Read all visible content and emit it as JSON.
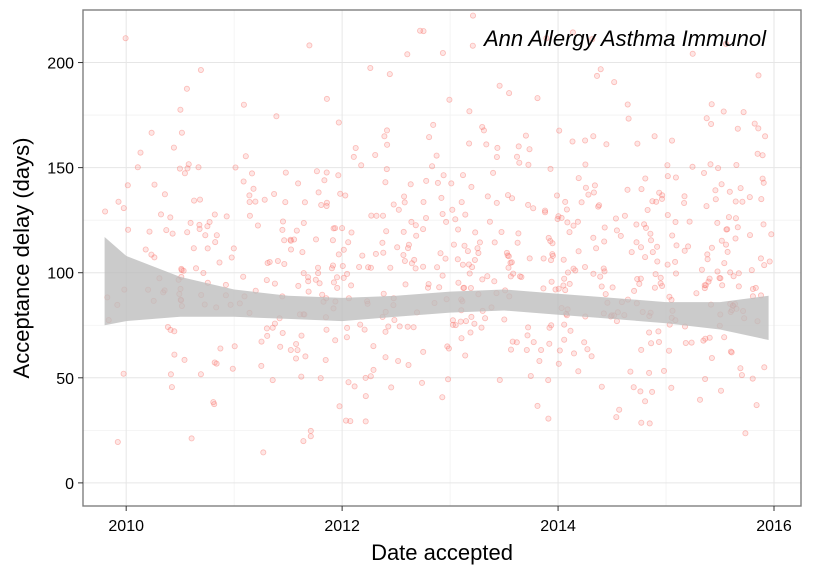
{
  "chart_data": {
    "type": "scatter",
    "annotation": "Ann Allergy Asthma Immunol",
    "xlabel": "Date accepted",
    "ylabel": "Acceptance delay (days)",
    "xlim": [
      2009.6,
      2016.25
    ],
    "ylim": [
      -11,
      225
    ],
    "x_ticks": [
      2010,
      2012,
      2014,
      2016
    ],
    "x_tick_labels": [
      "2010",
      "2012",
      "2014",
      "2016"
    ],
    "y_ticks": [
      0,
      50,
      100,
      150,
      200
    ],
    "y_tick_labels": [
      "0",
      "50",
      "100",
      "150",
      "200"
    ],
    "x_minor_ticks": [
      2011,
      2013,
      2015
    ],
    "y_minor_ticks": [
      25,
      75,
      125,
      175
    ],
    "grid": true,
    "point_color": "#f8766d",
    "ribbon_color": "#bdbdbd",
    "points": {
      "seed": 20240511,
      "count": 700,
      "x_range": [
        2009.8,
        2015.95
      ],
      "y_range": [
        0,
        223
      ],
      "density_by_year": [
        {
          "from": 2009.8,
          "to": 2010.3,
          "weight": 0.3
        },
        {
          "from": 2010.3,
          "to": 2011.0,
          "weight": 0.9
        },
        {
          "from": 2011.0,
          "to": 2016.0,
          "weight": 1.0
        }
      ]
    },
    "smooth_ribbon": {
      "x": [
        2009.8,
        2010.0,
        2010.5,
        2011.0,
        2011.5,
        2012.0,
        2012.5,
        2013.0,
        2013.5,
        2014.0,
        2014.5,
        2015.0,
        2015.5,
        2015.95
      ],
      "upper": [
        117,
        108,
        98,
        92,
        89,
        88,
        89,
        91,
        92,
        90,
        88,
        86,
        86,
        89
      ],
      "lower": [
        75,
        77,
        79,
        79,
        78,
        77,
        79,
        81,
        82,
        80,
        78,
        76,
        73,
        68
      ]
    }
  }
}
